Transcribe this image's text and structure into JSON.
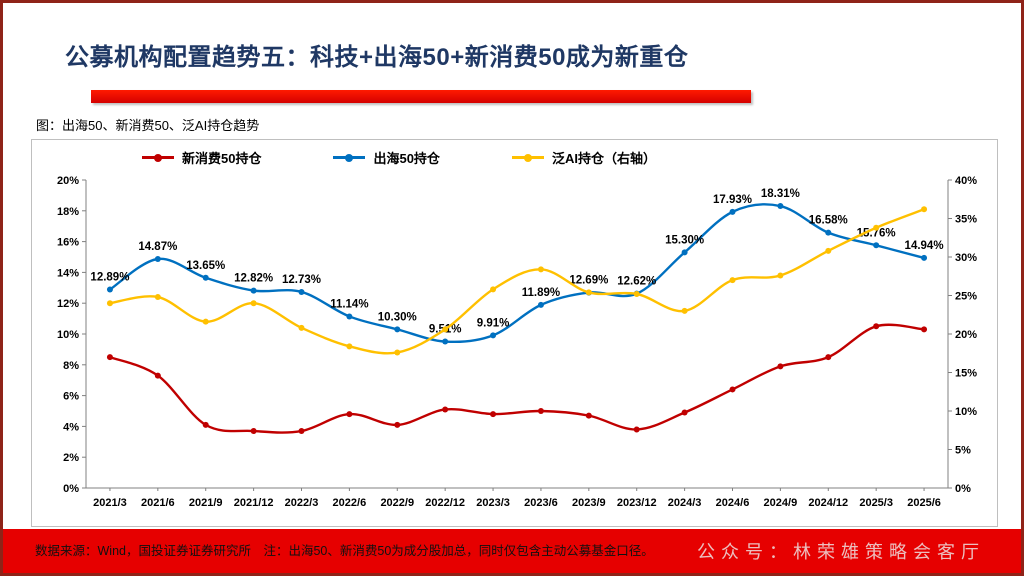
{
  "slide": {
    "title": "公募机构配置趋势五：科技+出海50+新消费50成为新重仓",
    "footer_source": "数据来源：Wind，国投证券证券研究所　注：出海50、新消费50为成分股加总，同时仅包含主动公募基金口径。",
    "watermark": "公众号：林荣雄策略会客厅"
  },
  "colors": {
    "title": "#1F3864",
    "accent_bar": "#E60000",
    "footer_bar": "#E60000",
    "slide_border": "#8F2318",
    "axis": "#808080"
  },
  "chart_data": {
    "type": "line",
    "title": "图：出海50、新消费50、泛AI持仓趋势",
    "categories": [
      "2021/3",
      "2021/6",
      "2021/9",
      "2021/12",
      "2022/3",
      "2022/6",
      "2022/9",
      "2022/12",
      "2023/3",
      "2023/6",
      "2023/9",
      "2023/12",
      "2024/3",
      "2024/6",
      "2024/9",
      "2024/12",
      "2025/3",
      "2025/6"
    ],
    "series": [
      {
        "name": "新消费50持仓",
        "axis": "left",
        "color": "#C00000",
        "values": [
          8.5,
          7.3,
          4.1,
          3.7,
          3.7,
          4.8,
          4.1,
          5.1,
          4.8,
          5.0,
          4.7,
          3.8,
          4.9,
          6.4,
          7.9,
          8.5,
          10.5,
          10.3
        ]
      },
      {
        "name": "出海50持仓",
        "axis": "left",
        "color": "#0070C0",
        "values": [
          12.89,
          14.87,
          13.65,
          12.82,
          12.73,
          11.14,
          10.3,
          9.51,
          9.91,
          11.89,
          12.69,
          12.62,
          15.3,
          17.93,
          18.31,
          16.58,
          15.76,
          14.94
        ],
        "labels": [
          "12.89%",
          "14.87%",
          "13.65%",
          "12.82%",
          "12.73%",
          "11.14%",
          "10.30%",
          "9.51%",
          "9.91%",
          "11.89%",
          "12.69%",
          "12.62%",
          "15.30%",
          "17.93%",
          "18.31%",
          "16.58%",
          "15.76%",
          "14.94%"
        ]
      },
      {
        "name": "泛AI持仓（右轴）",
        "axis": "right",
        "color": "#FFC000",
        "values": [
          24.0,
          24.8,
          21.6,
          24.0,
          20.8,
          18.4,
          17.6,
          20.6,
          25.8,
          28.4,
          25.4,
          25.2,
          23.0,
          27.0,
          27.6,
          30.8,
          33.8,
          36.2
        ]
      }
    ],
    "left_axis": {
      "min": 0,
      "max": 20,
      "step": 2,
      "suffix": "%"
    },
    "right_axis": {
      "min": 0,
      "max": 40,
      "step": 5,
      "suffix": "%"
    },
    "legend_position": "top",
    "grid": false
  }
}
